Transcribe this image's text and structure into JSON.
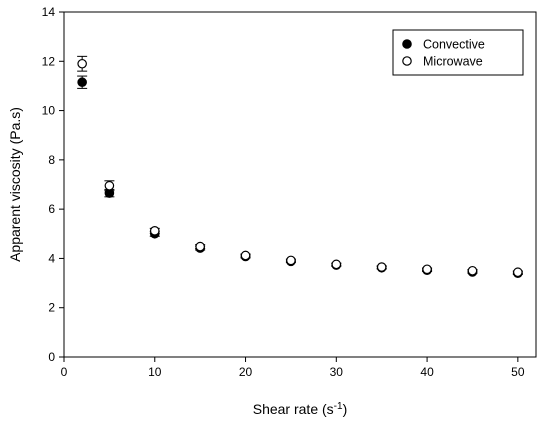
{
  "chart_data": {
    "type": "scatter",
    "xlabel": "Shear rate (s",
    "xlabel_sup": "-1",
    "xlabel_end": ")",
    "ylabel": "Apparent viscosity (Pa.s)",
    "xlim": [
      0,
      52
    ],
    "ylim": [
      0,
      14
    ],
    "xticks": [
      0,
      10,
      20,
      30,
      40,
      50
    ],
    "yticks": [
      0,
      2,
      4,
      6,
      8,
      10,
      12,
      14
    ],
    "xtick_labels": [
      "0",
      "10",
      "20",
      "30",
      "40",
      "50"
    ],
    "ytick_labels": [
      "0",
      "2",
      "4",
      "6",
      "8",
      "10",
      "12",
      "14"
    ],
    "grid": false,
    "legend_position": "top-right",
    "x": [
      2,
      5,
      10,
      15,
      20,
      25,
      30,
      35,
      40,
      45,
      50
    ],
    "series": [
      {
        "name": "Convective",
        "marker": "filled-circle",
        "color": "#000000",
        "values": [
          11.15,
          6.65,
          5.0,
          4.42,
          4.08,
          3.88,
          3.73,
          3.62,
          3.52,
          3.45,
          3.4
        ],
        "errors": [
          0.25,
          0.15,
          0.1,
          0.08,
          0.06,
          0.05,
          0.05,
          0.05,
          0.05,
          0.05,
          0.05
        ]
      },
      {
        "name": "Microwave",
        "marker": "open-circle",
        "color": "#000000",
        "values": [
          11.9,
          6.95,
          5.12,
          4.48,
          4.12,
          3.92,
          3.76,
          3.65,
          3.56,
          3.5,
          3.44
        ],
        "errors": [
          0.3,
          0.2,
          0.1,
          0.08,
          0.06,
          0.05,
          0.05,
          0.05,
          0.05,
          0.05,
          0.05
        ]
      }
    ]
  }
}
